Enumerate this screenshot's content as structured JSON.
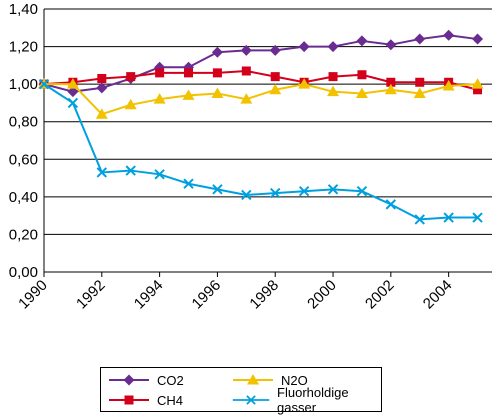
{
  "chart_data": {
    "type": "line",
    "title": "",
    "xlabel": "",
    "ylabel": "",
    "x": [
      1990,
      1991,
      1992,
      1993,
      1994,
      1995,
      1996,
      1997,
      1998,
      1999,
      2000,
      2001,
      2002,
      2003,
      2004,
      2005
    ],
    "xlim": [
      1990,
      2005.5
    ],
    "ylim": [
      0,
      1.4
    ],
    "x_ticks": [
      "1990",
      "1992",
      "1994",
      "1996",
      "1998",
      "2000",
      "2002",
      "2004"
    ],
    "x_tick_values": [
      1990,
      1992,
      1994,
      1996,
      1998,
      2000,
      2002,
      2004
    ],
    "y_ticks": [
      "0,00",
      "0,20",
      "0,40",
      "0,60",
      "0,80",
      "1,00",
      "1,20",
      "1,40"
    ],
    "y_tick_values": [
      0,
      0.2,
      0.4,
      0.6,
      0.8,
      1.0,
      1.2,
      1.4
    ],
    "grid": "horizontal",
    "legend_position": "bottom",
    "series": [
      {
        "name": "CO2",
        "color": "#6a2c91",
        "marker": "diamond",
        "values": [
          1.0,
          0.96,
          0.98,
          1.03,
          1.09,
          1.09,
          1.17,
          1.18,
          1.18,
          1.2,
          1.2,
          1.23,
          1.21,
          1.24,
          1.26,
          1.24
        ]
      },
      {
        "name": "CH4",
        "color": "#d4001b",
        "marker": "square",
        "values": [
          1.0,
          1.01,
          1.03,
          1.04,
          1.06,
          1.06,
          1.06,
          1.07,
          1.04,
          1.01,
          1.04,
          1.05,
          1.01,
          1.01,
          1.01,
          0.97
        ]
      },
      {
        "name": "N2O",
        "color": "#f2c200",
        "marker": "triangle",
        "values": [
          1.0,
          1.0,
          0.84,
          0.89,
          0.92,
          0.94,
          0.95,
          0.92,
          0.97,
          1.0,
          0.96,
          0.95,
          0.97,
          0.95,
          0.99,
          1.0
        ]
      },
      {
        "name": "Fluorholdige gasser",
        "color": "#00a0e0",
        "marker": "x",
        "values": [
          1.0,
          0.9,
          0.53,
          0.54,
          0.52,
          0.47,
          0.44,
          0.41,
          0.42,
          0.43,
          0.44,
          0.43,
          0.36,
          0.28,
          0.29,
          0.29
        ]
      }
    ]
  }
}
